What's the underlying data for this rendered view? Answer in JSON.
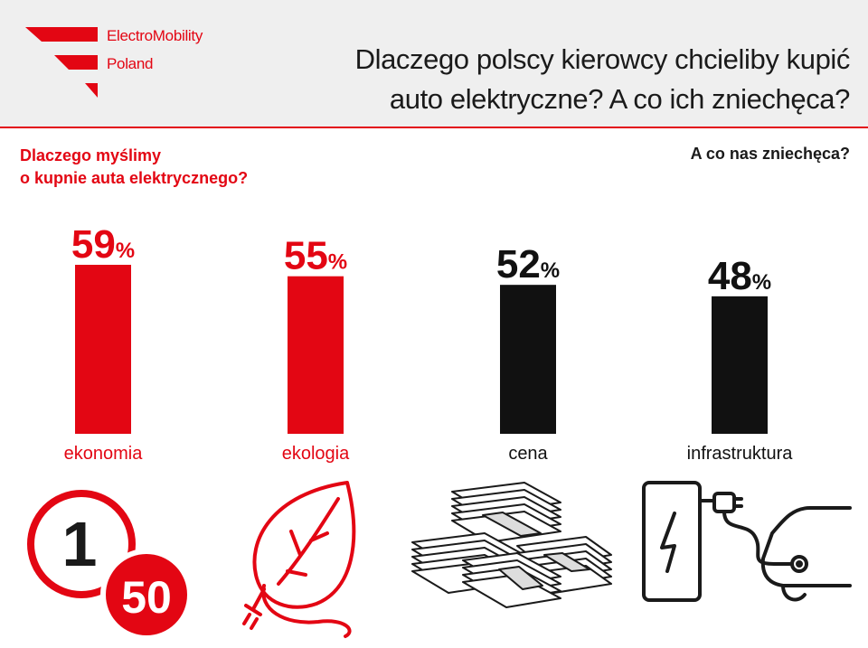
{
  "header": {
    "brand_line1": "ElectroMobility",
    "brand_line2": "Poland",
    "title_line1": "Dlaczego polscy kierowcy chcieliby kupić",
    "title_line2": "auto elektryczne? A co ich zniechęca?"
  },
  "subheadings": {
    "left_line1": "Dlaczego myślimy",
    "left_line2": "o kupnie auta elektrycznego?",
    "right": "A co nas zniechęca?"
  },
  "colors": {
    "accent": "#e30613",
    "dark": "#111111",
    "header_bg": "#efefef"
  },
  "chart_data": {
    "type": "bar",
    "categories": [
      "ekonomia",
      "ekologia",
      "cena",
      "infrastruktura"
    ],
    "values": [
      59,
      55,
      52,
      48
    ],
    "unit": "%",
    "bar_colors": [
      "#e30613",
      "#e30613",
      "#111111",
      "#111111"
    ]
  },
  "icons": {
    "economy": {
      "name": "one-to-fifty-icon",
      "top_number": "1",
      "bottom_number": "50"
    },
    "ecology": {
      "name": "leaf-plug-icon"
    },
    "price": {
      "name": "money-stacks-icon"
    },
    "infrastructure": {
      "name": "charger-car-icon"
    }
  }
}
